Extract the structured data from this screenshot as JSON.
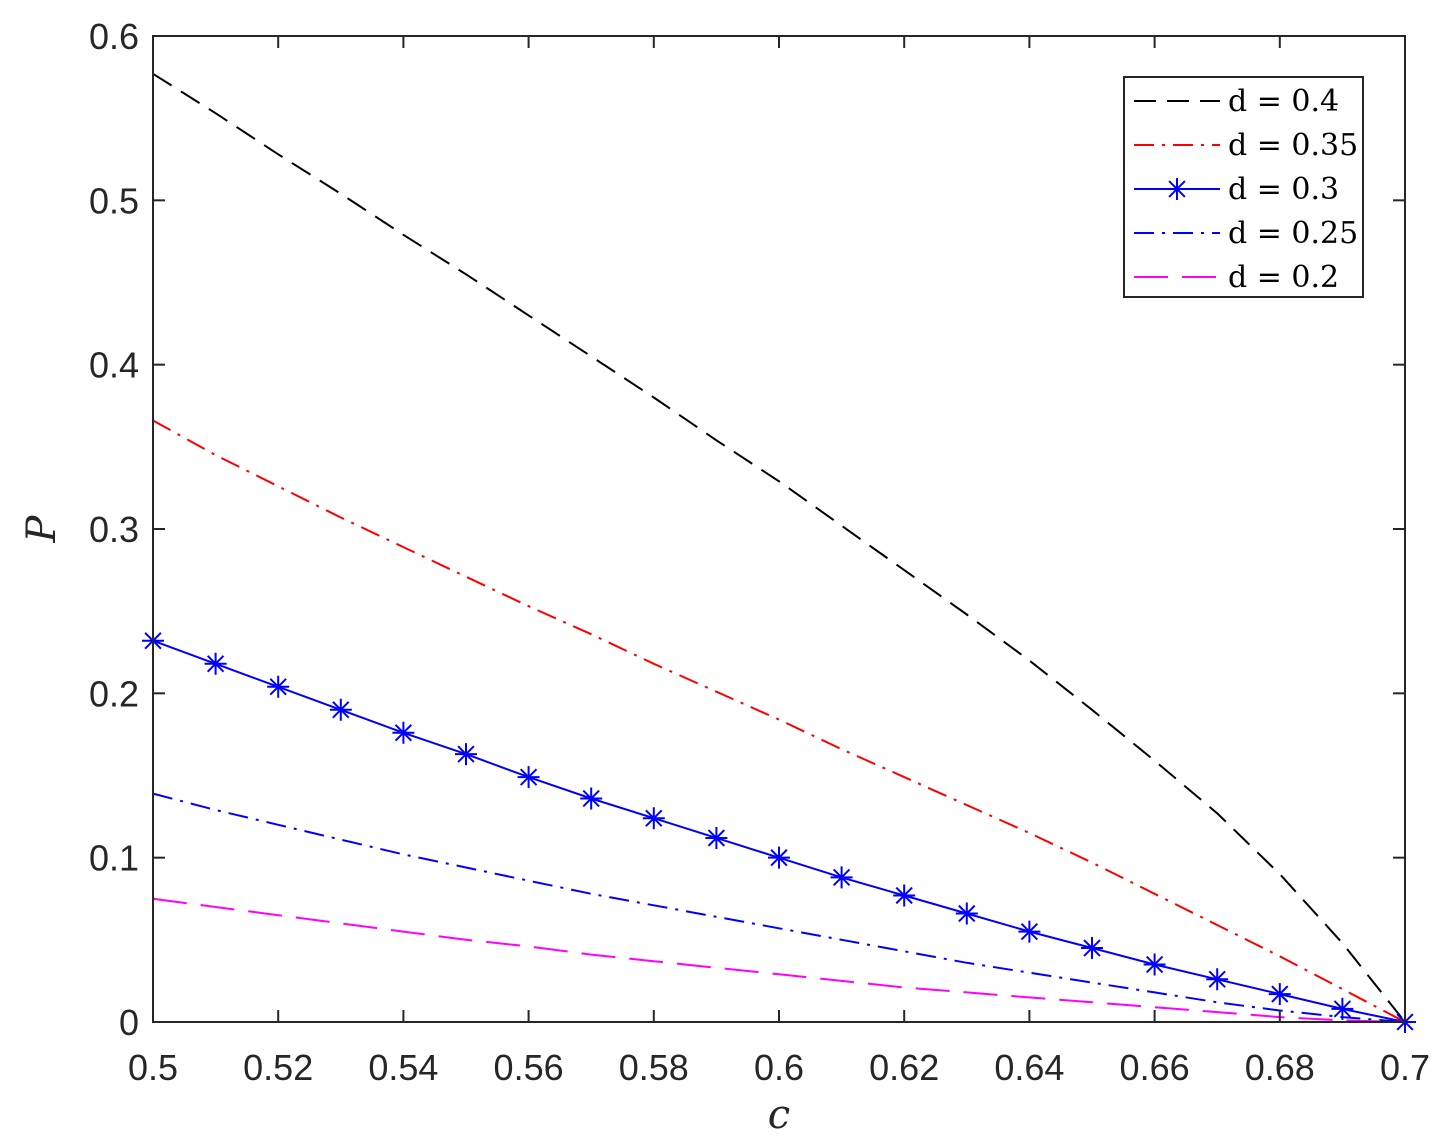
{
  "chart_data": {
    "type": "line",
    "xlabel": "c",
    "ylabel": "P",
    "xlim": [
      0.5,
      0.7
    ],
    "ylim": [
      0,
      0.6
    ],
    "x_ticks": [
      "0.5",
      "0.52",
      "0.54",
      "0.56",
      "0.58",
      "0.6",
      "0.62",
      "0.64",
      "0.66",
      "0.68",
      "0.7"
    ],
    "y_ticks": [
      "0",
      "0.1",
      "0.2",
      "0.3",
      "0.4",
      "0.5",
      "0.6"
    ],
    "grid": false,
    "box": true,
    "legend_position": "top-right",
    "x": [
      0.5,
      0.51,
      0.52,
      0.53,
      0.54,
      0.55,
      0.56,
      0.57,
      0.58,
      0.59,
      0.6,
      0.61,
      0.62,
      0.63,
      0.64,
      0.65,
      0.66,
      0.67,
      0.68,
      0.69,
      0.7
    ],
    "series": [
      {
        "name": "d = 0.4",
        "color": "#000000",
        "dash": "dashed",
        "marker": "none",
        "values": [
          0.577,
          0.553,
          0.528,
          0.504,
          0.479,
          0.455,
          0.43,
          0.405,
          0.38,
          0.354,
          0.329,
          0.302,
          0.275,
          0.248,
          0.22,
          0.19,
          0.159,
          0.127,
          0.09,
          0.048,
          0.0
        ]
      },
      {
        "name": "d = 0.35",
        "color": "#ff0000",
        "dash": "dashdot",
        "marker": "none",
        "values": [
          0.366,
          0.345,
          0.326,
          0.307,
          0.289,
          0.271,
          0.253,
          0.236,
          0.218,
          0.201,
          0.184,
          0.166,
          0.149,
          0.132,
          0.115,
          0.097,
          0.078,
          0.059,
          0.04,
          0.02,
          0.0
        ]
      },
      {
        "name": "d = 0.3",
        "color": "#0000ff",
        "dash": "solid",
        "marker": "star",
        "values": [
          0.232,
          0.218,
          0.204,
          0.19,
          0.176,
          0.163,
          0.149,
          0.136,
          0.124,
          0.112,
          0.1,
          0.088,
          0.077,
          0.066,
          0.055,
          0.045,
          0.035,
          0.026,
          0.017,
          0.008,
          0.0
        ]
      },
      {
        "name": "d = 0.25",
        "color": "#0000ff",
        "dash": "dashdot",
        "marker": "none",
        "values": [
          0.139,
          0.129,
          0.12,
          0.111,
          0.102,
          0.094,
          0.086,
          0.078,
          0.071,
          0.064,
          0.057,
          0.05,
          0.043,
          0.036,
          0.03,
          0.024,
          0.018,
          0.012,
          0.007,
          0.003,
          0.0
        ]
      },
      {
        "name": "d = 0.2",
        "color": "#ff00ff",
        "dash": "longdash",
        "marker": "none",
        "values": [
          0.075,
          0.07,
          0.065,
          0.06,
          0.055,
          0.05,
          0.046,
          0.041,
          0.037,
          0.033,
          0.029,
          0.025,
          0.021,
          0.018,
          0.015,
          0.012,
          0.009,
          0.006,
          0.003,
          0.001,
          0.0
        ]
      }
    ]
  }
}
